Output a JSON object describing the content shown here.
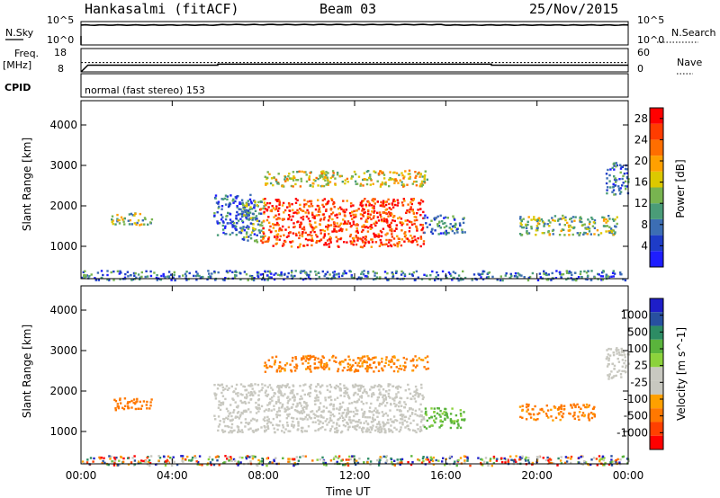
{
  "header": {
    "station": "Hankasalmi (fitACF)",
    "beam": "Beam 03",
    "date": "25/Nov/2015"
  },
  "summary": {
    "nsky_label": "N.Sky",
    "nsky_ticks": [
      "10^5",
      "10^0"
    ],
    "nsearch_label": "N.Search",
    "nsearch_ticks": [
      "10^5",
      "10^0"
    ],
    "freq_label": "Freq.",
    "freq_unit": "[MHz]",
    "freq_ticks": [
      "18",
      "8"
    ],
    "nave_label": "Nave",
    "nave_ticks": [
      "60",
      "0"
    ],
    "cpid_label": "CPID",
    "cpid_text": "normal (fast stereo) 153"
  },
  "colors": {
    "power_scale": [
      "#1e1eff",
      "#1e3cc8",
      "#3c6eb4",
      "#4a9c78",
      "#78b450",
      "#dcc800",
      "#ffa000",
      "#ff6e00",
      "#ff3c00",
      "#ff0000"
    ],
    "velocity_scale": [
      "#1e1ec8",
      "#2850a0",
      "#2d8c64",
      "#5ab43c",
      "#8cd23c",
      "#c8c8c0",
      "#c8c8c0",
      "#ffa000",
      "#ff7800",
      "#ff4000",
      "#ff0000"
    ],
    "ground_scatter": "#c8c8c0"
  },
  "chart_data": [
    {
      "type": "heatmap",
      "title": "Power",
      "xlabel": "Time UT",
      "ylabel": "Slant Range [km]",
      "x_ticks": [
        "00:00",
        "04:00",
        "08:00",
        "12:00",
        "16:00",
        "20:00",
        "00:00"
      ],
      "xlim_hours": [
        0,
        24
      ],
      "ylim_km": [
        200,
        4600
      ],
      "y_ticks": [
        "1000",
        "2000",
        "3000",
        "4000"
      ],
      "colorbar": {
        "label": "Power [dB]",
        "range": [
          0,
          30
        ],
        "ticks": [
          "4",
          "8",
          "12",
          "16",
          "20",
          "24",
          "28"
        ]
      },
      "regions": [
        {
          "start_h": 0.0,
          "end_h": 24.0,
          "min_km": 180,
          "max_km": 420,
          "level": 0.25
        },
        {
          "start_h": 1.3,
          "end_h": 3.1,
          "min_km": 1550,
          "max_km": 1850,
          "level": 0.45
        },
        {
          "start_h": 5.8,
          "end_h": 7.6,
          "min_km": 1300,
          "max_km": 2300,
          "level": 0.2
        },
        {
          "start_h": 7.0,
          "end_h": 8.0,
          "min_km": 1100,
          "max_km": 2200,
          "level": 0.35
        },
        {
          "start_h": 7.8,
          "end_h": 15.0,
          "min_km": 1000,
          "max_km": 2200,
          "level": 0.85
        },
        {
          "start_h": 8.0,
          "end_h": 15.2,
          "min_km": 2500,
          "max_km": 2900,
          "level": 0.55
        },
        {
          "start_h": 15.0,
          "end_h": 16.8,
          "min_km": 1300,
          "max_km": 1800,
          "level": 0.3
        },
        {
          "start_h": 19.2,
          "end_h": 23.5,
          "min_km": 1300,
          "max_km": 1800,
          "level": 0.45
        },
        {
          "start_h": 23.0,
          "end_h": 24.0,
          "min_km": 2300,
          "max_km": 3100,
          "level": 0.25
        }
      ]
    },
    {
      "type": "heatmap",
      "title": "Velocity",
      "xlabel": "Time UT",
      "ylabel": "Slant Range [km]",
      "x_ticks": [
        "00:00",
        "04:00",
        "08:00",
        "12:00",
        "16:00",
        "20:00",
        "00:00"
      ],
      "xlim_hours": [
        0,
        24
      ],
      "ylim_km": [
        200,
        4600
      ],
      "y_ticks": [
        "1000",
        "2000",
        "3000",
        "4000"
      ],
      "colorbar": {
        "label": "Velocity [m s^-1]",
        "ticks": [
          "1000",
          "500",
          "100",
          "25",
          "-25",
          "-100",
          "-500",
          "-1000"
        ]
      },
      "regions": [
        {
          "start_h": 0.0,
          "end_h": 24.0,
          "min_km": 180,
          "max_km": 420,
          "velocity": "mixed"
        },
        {
          "start_h": 1.3,
          "end_h": 3.1,
          "min_km": 1550,
          "max_km": 1850,
          "velocity": -200
        },
        {
          "start_h": 5.8,
          "end_h": 15.0,
          "min_km": 1000,
          "max_km": 2200,
          "velocity": "ground_scatter"
        },
        {
          "start_h": 8.0,
          "end_h": 15.2,
          "min_km": 2500,
          "max_km": 2900,
          "velocity": -150
        },
        {
          "start_h": 15.0,
          "end_h": 16.8,
          "min_km": 1100,
          "max_km": 1600,
          "velocity": 150
        },
        {
          "start_h": 19.2,
          "end_h": 22.5,
          "min_km": 1300,
          "max_km": 1700,
          "velocity": -150
        },
        {
          "start_h": 23.0,
          "end_h": 24.0,
          "min_km": 2300,
          "max_km": 3100,
          "velocity": "ground_scatter"
        }
      ]
    },
    {
      "type": "line",
      "title": "N.Sky",
      "x": [
        0,
        24
      ],
      "y": [
        0.85,
        0.85
      ],
      "note_levels": "log scale 10^0 to 10^5"
    },
    {
      "type": "line",
      "title": "Freq.",
      "x_hours": [
        0,
        0.3,
        6.0,
        6.0,
        18.0,
        18.0,
        24
      ],
      "freq_mhz": [
        8.0,
        10.9,
        10.9,
        11.3,
        11.3,
        10.9,
        10.9
      ],
      "nave_dotted": 12.0
    }
  ]
}
